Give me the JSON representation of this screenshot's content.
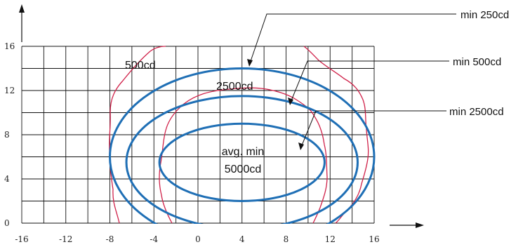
{
  "chart_data": {
    "type": "contour",
    "x_ticks": [
      "-16",
      "-12",
      "-8",
      "-4",
      "0",
      "4",
      "8",
      "12",
      "16"
    ],
    "y_ticks": [
      "0",
      "4",
      "8",
      "12",
      "16"
    ],
    "xlim": [
      -16,
      16
    ],
    "ylim": [
      0,
      16
    ],
    "grid": true,
    "colors": {
      "measured": "#d0224a",
      "requirement": "#1f6fb5",
      "grid": "#111111"
    },
    "inner_labels": {
      "label_500": "500cd",
      "label_2500": "2500cd",
      "label_5000_line1": "avg. min",
      "label_5000_line2": "5000cd"
    },
    "callouts": [
      {
        "name": "callout-min-250",
        "text": "min 250cd"
      },
      {
        "name": "callout-min-500",
        "text": "min 500cd"
      },
      {
        "name": "callout-min-2500",
        "text": "min 2500cd"
      }
    ],
    "requirement_ellipses": [
      {
        "name": "ellipse-min-250",
        "cx": 4,
        "cy": 6,
        "rx": 12,
        "ry": 8
      },
      {
        "name": "ellipse-min-500",
        "cx": 4,
        "cy": 5.5,
        "rx": 10.5,
        "ry": 6
      },
      {
        "name": "ellipse-min-2500",
        "cx": 4,
        "cy": 5.5,
        "rx": 7.5,
        "ry": 3.5
      }
    ]
  }
}
